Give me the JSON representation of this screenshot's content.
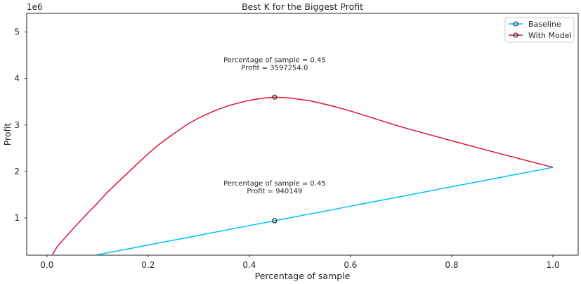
{
  "chart_data": {
    "type": "line",
    "title": "Best K for the Biggest Profit",
    "xlabel": "Percentage of sample",
    "ylabel": "Profit",
    "y_multiplier_label": "1e6",
    "xlim": [
      -0.04,
      1.05
    ],
    "ylim": [
      200000,
      5400000
    ],
    "xticks": [
      0.0,
      0.2,
      0.4,
      0.6,
      0.8,
      1.0
    ],
    "xtick_labels": [
      "0.0",
      "0.2",
      "0.4",
      "0.6",
      "0.8",
      "1.0"
    ],
    "yticks": [
      1000000,
      2000000,
      3000000,
      4000000,
      5000000
    ],
    "ytick_labels": [
      "1",
      "2",
      "3",
      "4",
      "5"
    ],
    "grid": false,
    "legend_position": "top-right",
    "series": [
      {
        "name": "Baseline",
        "color": "#00bfff",
        "x": [
          0.0,
          0.1,
          0.2,
          0.3,
          0.4,
          0.45,
          0.5,
          0.6,
          0.7,
          0.8,
          0.9,
          1.0
        ],
        "y": [
          0,
          208900,
          417800,
          626700,
          835600,
          940149,
          1044500,
          1253400,
          1462300,
          1671200,
          1880100,
          2089000
        ]
      },
      {
        "name": "With Model",
        "color": "#dc143c",
        "x": [
          0.0,
          0.02,
          0.05,
          0.08,
          0.1,
          0.12,
          0.15,
          0.18,
          0.2,
          0.22,
          0.25,
          0.28,
          0.3,
          0.33,
          0.36,
          0.4,
          0.43,
          0.45,
          0.48,
          0.52,
          0.56,
          0.6,
          0.65,
          0.7,
          0.8,
          0.9,
          1.0
        ],
        "y": [
          0,
          380000,
          750000,
          1100000,
          1320000,
          1560000,
          1870000,
          2180000,
          2380000,
          2570000,
          2810000,
          3030000,
          3150000,
          3300000,
          3420000,
          3530000,
          3580000,
          3597254,
          3580000,
          3520000,
          3420000,
          3300000,
          3130000,
          2960000,
          2660000,
          2370000,
          2089000
        ]
      }
    ],
    "markers": [
      {
        "series": "Baseline",
        "x": 0.45,
        "y": 940149
      },
      {
        "series": "With Model",
        "x": 0.45,
        "y": 3597254
      }
    ],
    "annotations": [
      {
        "line1": "Percentage of sample = 0.45",
        "line2": "Profit = 3597254.0",
        "x": 0.45,
        "y": 3597254
      },
      {
        "line1": "Percentage of sample = 0.45",
        "line2": "Profit = 940149",
        "x": 0.45,
        "y": 940149
      }
    ]
  }
}
